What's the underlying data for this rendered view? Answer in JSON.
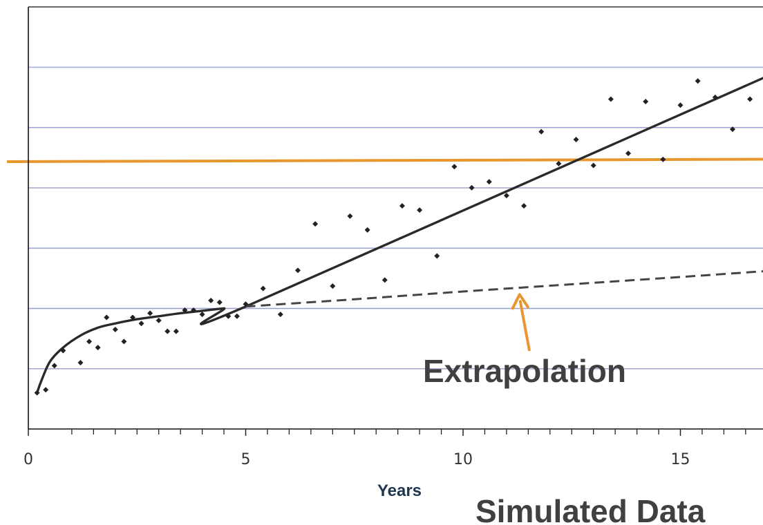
{
  "chart_data": {
    "type": "scatter",
    "xlabel": "Years",
    "ylabel": "",
    "title": "",
    "xlim": [
      0,
      17
    ],
    "ylim": [
      0,
      7
    ],
    "x_ticks": [
      0,
      5,
      10,
      15
    ],
    "x_minor_ticks": [
      1,
      1.5,
      2,
      2.5,
      3,
      3.5,
      4,
      4.5,
      5.5,
      6,
      6.5,
      7,
      7.5,
      8,
      8.5,
      9,
      9.5,
      10.5,
      11,
      11.5,
      12,
      12.5,
      13,
      13.5,
      14,
      14.5,
      15.5,
      16,
      16.5
    ],
    "y_gridlines": [
      1,
      2,
      3,
      4,
      5,
      6
    ],
    "grid": true,
    "colors": {
      "points": "#222222",
      "fit": "#2a2a2a",
      "threshold": "#e8962e",
      "arrow": "#e8962e",
      "grid_blue": "#9aa0d6",
      "grid_dark": "#555555"
    },
    "series": [
      {
        "type": "scatter",
        "points": [
          [
            0.2,
            0.6
          ],
          [
            0.4,
            0.65
          ],
          [
            0.6,
            1.05
          ],
          [
            0.8,
            1.3
          ],
          [
            1.2,
            1.1
          ],
          [
            1.4,
            1.45
          ],
          [
            1.6,
            1.35
          ],
          [
            1.8,
            1.85
          ],
          [
            2.0,
            1.65
          ],
          [
            2.2,
            1.45
          ],
          [
            2.4,
            1.85
          ],
          [
            2.6,
            1.75
          ],
          [
            2.8,
            1.92
          ],
          [
            3.0,
            1.8
          ],
          [
            3.2,
            1.62
          ],
          [
            3.4,
            1.62
          ],
          [
            3.6,
            1.97
          ],
          [
            3.8,
            1.97
          ],
          [
            4.0,
            1.9
          ],
          [
            4.2,
            2.13
          ],
          [
            4.4,
            2.1
          ],
          [
            4.6,
            1.87
          ],
          [
            4.8,
            1.87
          ],
          [
            5.0,
            2.07
          ],
          [
            5.4,
            2.33
          ],
          [
            5.8,
            1.9
          ],
          [
            6.2,
            2.63
          ],
          [
            6.6,
            3.4
          ],
          [
            7.0,
            2.37
          ],
          [
            7.4,
            3.53
          ],
          [
            7.8,
            3.3
          ],
          [
            8.2,
            2.47
          ],
          [
            8.6,
            3.7
          ],
          [
            9.0,
            3.63
          ],
          [
            9.4,
            2.87
          ],
          [
            9.8,
            4.35
          ],
          [
            10.2,
            4.0
          ],
          [
            10.6,
            4.1
          ],
          [
            11.0,
            3.87
          ],
          [
            11.4,
            3.7
          ],
          [
            11.8,
            4.93
          ],
          [
            12.2,
            4.4
          ],
          [
            12.6,
            4.8
          ],
          [
            13.0,
            4.37
          ],
          [
            13.4,
            5.47
          ],
          [
            13.8,
            4.57
          ],
          [
            14.2,
            5.43
          ],
          [
            14.6,
            4.47
          ],
          [
            15.0,
            5.37
          ],
          [
            15.4,
            5.77
          ],
          [
            15.8,
            5.5
          ],
          [
            16.2,
            4.97
          ],
          [
            16.6,
            5.47
          ],
          [
            17.0,
            6.1
          ]
        ]
      },
      {
        "type": "line",
        "style": "solid",
        "points": [
          [
            0.2,
            0.6
          ],
          [
            0.3,
            0.8
          ],
          [
            0.5,
            1.12
          ],
          [
            0.8,
            1.35
          ],
          [
            1.2,
            1.55
          ],
          [
            1.6,
            1.68
          ],
          [
            2.0,
            1.75
          ],
          [
            2.5,
            1.82
          ],
          [
            3.0,
            1.87
          ],
          [
            3.5,
            1.92
          ],
          [
            4.0,
            1.96
          ],
          [
            4.5,
            2.0
          ],
          [
            5.0,
            2.03
          ],
          [
            17.0,
            5.85
          ]
        ]
      },
      {
        "type": "line",
        "style": "dashed",
        "points": [
          [
            5.0,
            2.03
          ],
          [
            7.5,
            2.15
          ],
          [
            10.0,
            2.28
          ],
          [
            12.5,
            2.4
          ],
          [
            15.0,
            2.52
          ],
          [
            17.0,
            2.62
          ]
        ]
      }
    ],
    "threshold_line": {
      "y": 4.45
    },
    "annotations": [
      {
        "text": "Extrapolation",
        "target": [
          11.3,
          2.23
        ]
      },
      {
        "text": "Simulated Data"
      }
    ]
  }
}
